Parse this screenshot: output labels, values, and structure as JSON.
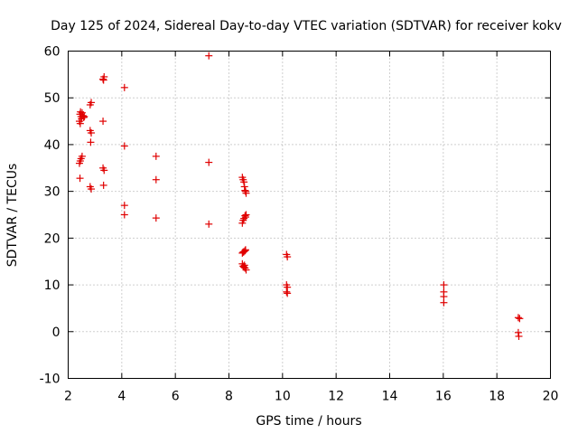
{
  "chart_data": {
    "type": "scatter",
    "title": "Day 125 of 2024, Sidereal Day-to-day VTEC variation (SDTVAR) for receiver kokv",
    "xlabel": "GPS time / hours",
    "ylabel": "SDTVAR / TECUs",
    "xlim": [
      2,
      20
    ],
    "ylim": [
      -10,
      60
    ],
    "xticks": [
      2,
      4,
      6,
      8,
      10,
      12,
      14,
      16,
      18,
      20
    ],
    "yticks": [
      -10,
      0,
      10,
      20,
      30,
      40,
      50,
      60
    ],
    "xtick_labels": [
      "2",
      "4",
      "6",
      "8",
      "10",
      "12",
      "14",
      "16",
      "18",
      "20"
    ],
    "ytick_labels": [
      "-10",
      "0",
      "10",
      "20",
      "30",
      "40",
      "50",
      "60"
    ],
    "grid": true,
    "marker": "+",
    "color": "#e00000",
    "series": [
      {
        "name": "SDTVAR",
        "points": [
          [
            2.42,
            45.0
          ],
          [
            2.44,
            46.5
          ],
          [
            2.46,
            47.0
          ],
          [
            2.48,
            46.0
          ],
          [
            2.5,
            45.5
          ],
          [
            2.52,
            46.8
          ],
          [
            2.55,
            46.2
          ],
          [
            2.58,
            45.8
          ],
          [
            2.6,
            46.0
          ],
          [
            2.45,
            44.5
          ],
          [
            2.42,
            36.0
          ],
          [
            2.45,
            36.5
          ],
          [
            2.48,
            37.0
          ],
          [
            2.52,
            37.5
          ],
          [
            2.44,
            32.8
          ],
          [
            2.82,
            48.5
          ],
          [
            2.86,
            49.0
          ],
          [
            2.82,
            43.0
          ],
          [
            2.86,
            42.5
          ],
          [
            2.84,
            40.5
          ],
          [
            2.82,
            31.0
          ],
          [
            2.86,
            30.5
          ],
          [
            3.3,
            54.0
          ],
          [
            3.34,
            54.5
          ],
          [
            3.32,
            53.8
          ],
          [
            3.3,
            45.0
          ],
          [
            3.3,
            35.0
          ],
          [
            3.34,
            34.5
          ],
          [
            3.32,
            31.3
          ],
          [
            4.1,
            52.2
          ],
          [
            4.1,
            39.7
          ],
          [
            4.1,
            27.0
          ],
          [
            4.1,
            25.0
          ],
          [
            5.28,
            37.5
          ],
          [
            5.28,
            32.5
          ],
          [
            5.28,
            24.3
          ],
          [
            7.25,
            59.0
          ],
          [
            7.25,
            36.2
          ],
          [
            7.25,
            23.0
          ],
          [
            8.5,
            33.0
          ],
          [
            8.53,
            32.5
          ],
          [
            8.56,
            32.0
          ],
          [
            8.58,
            31.0
          ],
          [
            8.6,
            30.2
          ],
          [
            8.62,
            30.0
          ],
          [
            8.64,
            29.6
          ],
          [
            8.5,
            23.2
          ],
          [
            8.53,
            23.8
          ],
          [
            8.56,
            24.2
          ],
          [
            8.6,
            24.8
          ],
          [
            8.62,
            24.5
          ],
          [
            8.64,
            25.0
          ],
          [
            8.5,
            16.8
          ],
          [
            8.53,
            17.0
          ],
          [
            8.56,
            17.1
          ],
          [
            8.6,
            17.3
          ],
          [
            8.62,
            17.5
          ],
          [
            8.5,
            14.5
          ],
          [
            8.53,
            14.0
          ],
          [
            8.56,
            13.8
          ],
          [
            8.6,
            13.6
          ],
          [
            8.64,
            13.2
          ],
          [
            8.58,
            14.2
          ],
          [
            10.15,
            16.5
          ],
          [
            10.18,
            16.0
          ],
          [
            10.15,
            10.0
          ],
          [
            10.18,
            9.5
          ],
          [
            10.15,
            8.5
          ],
          [
            10.18,
            8.2
          ],
          [
            16.02,
            10.0
          ],
          [
            16.02,
            8.5
          ],
          [
            16.02,
            7.5
          ],
          [
            16.02,
            6.2
          ],
          [
            18.8,
            3.0
          ],
          [
            18.85,
            2.8
          ],
          [
            18.8,
            -0.2
          ],
          [
            18.82,
            -1.0
          ]
        ]
      }
    ]
  }
}
